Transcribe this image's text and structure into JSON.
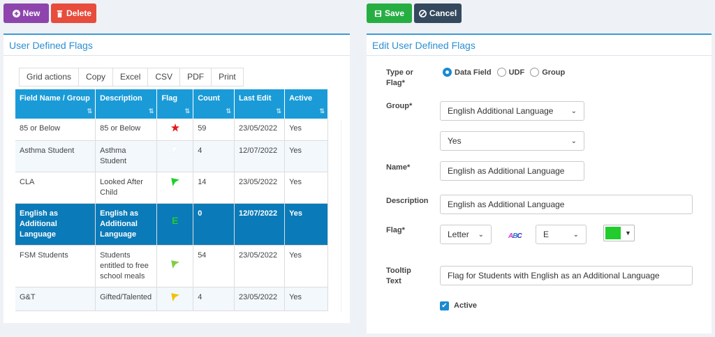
{
  "toolbar_left": {
    "new_label": "New",
    "delete_label": "Delete"
  },
  "toolbar_right": {
    "save_label": "Save",
    "cancel_label": "Cancel"
  },
  "left_panel": {
    "title": "User Defined Flags",
    "grid_actions": [
      "Grid actions",
      "Copy",
      "Excel",
      "CSV",
      "PDF",
      "Print"
    ],
    "columns": [
      "Field Name / Group",
      "Description",
      "Flag",
      "Count",
      "Last Edit",
      "Active"
    ],
    "rows": [
      {
        "name": "85 or Below",
        "description": "85 or Below",
        "flag": "star-red",
        "count": "59",
        "last_edit": "23/05/2022",
        "active": "Yes"
      },
      {
        "name": "Asthma Student",
        "description": "Asthma Student",
        "flag": "flag-white",
        "count": "4",
        "last_edit": "12/07/2022",
        "active": "Yes"
      },
      {
        "name": "CLA",
        "description": "Looked After Child",
        "flag": "flag-green",
        "count": "14",
        "last_edit": "23/05/2022",
        "active": "Yes"
      },
      {
        "name": "English as Additional Language",
        "description": "English as Additional Language",
        "flag": "letter-E",
        "flag_text": "E",
        "count": "0",
        "last_edit": "12/07/2022",
        "active": "Yes"
      },
      {
        "name": "FSM Students",
        "description": "Students entitled to free school meals",
        "flag": "flag-lightgreen",
        "count": "54",
        "last_edit": "23/05/2022",
        "active": "Yes"
      },
      {
        "name": "G&T",
        "description": "Gifted/Talented",
        "flag": "flag-yellow",
        "count": "4",
        "last_edit": "23/05/2022",
        "active": "Yes"
      }
    ],
    "selected_row": 3
  },
  "right_panel": {
    "title": "Edit User Defined Flags",
    "type_label": "Type or Flag*",
    "type_options": [
      "Data Field",
      "UDF",
      "Group"
    ],
    "type_selected": "Data Field",
    "group_label": "Group*",
    "group_value": "English Additional Language",
    "group_sub_value": "Yes",
    "name_label": "Name*",
    "name_value": "English as Additional Language",
    "description_label": "Description",
    "description_value": "English as Additional Language",
    "flag_label": "Flag*",
    "flag_type_value": "Letter",
    "flag_letter_value": "E",
    "flag_color": "#21cc2c",
    "tooltip_label": "Tooltip Text",
    "tooltip_value": "Flag for Students with English as an Additional Language",
    "active_label": "Active",
    "active_checked": true
  },
  "colors": {
    "accent": "#1a9bd7",
    "selected_row": "#0b7ab8",
    "new": "#8e44ad",
    "delete": "#e74c3c",
    "save": "#27ae43",
    "cancel": "#34495e"
  }
}
